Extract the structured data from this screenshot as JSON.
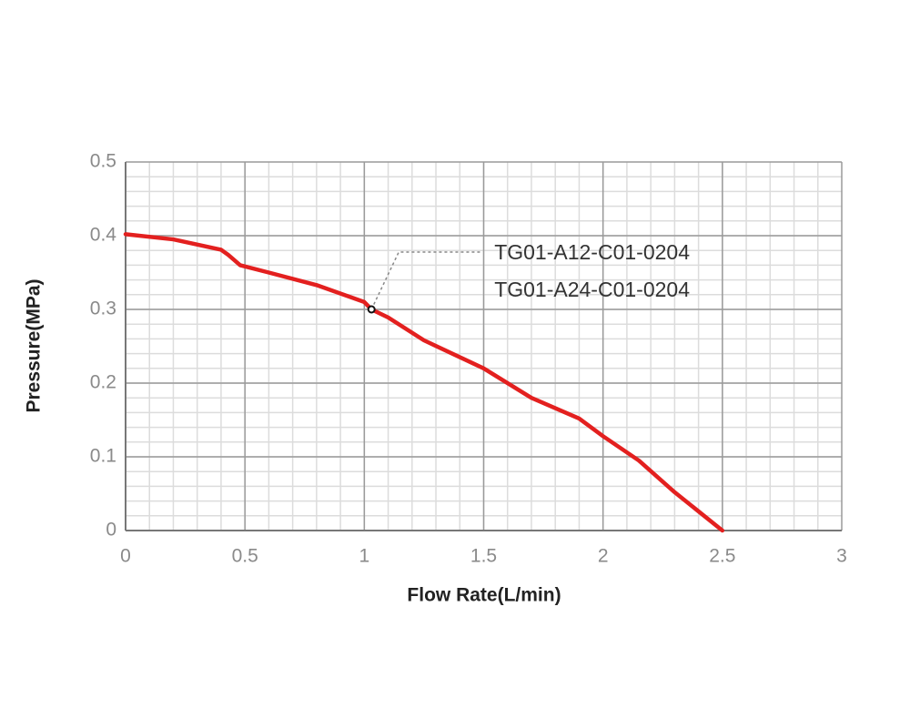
{
  "chart_data": {
    "type": "line",
    "x_label": "Flow Rate(L/min)",
    "y_label": "Pressure(MPa)",
    "x": [
      0,
      0.2,
      0.4,
      0.43,
      0.48,
      0.6,
      0.8,
      1.0,
      1.03,
      1.1,
      1.25,
      1.5,
      1.7,
      1.9,
      2.0,
      2.15,
      2.3,
      2.5
    ],
    "values": [
      0.402,
      0.395,
      0.381,
      0.374,
      0.36,
      0.35,
      0.333,
      0.31,
      0.3,
      0.289,
      0.258,
      0.22,
      0.18,
      0.152,
      0.128,
      0.095,
      0.052,
      0
    ],
    "color": "#e3201f",
    "xlim": [
      0,
      3
    ],
    "xticks": [
      0,
      0.5,
      1,
      1.5,
      2,
      2.5,
      3
    ],
    "ylim": [
      0,
      0.5
    ],
    "yticks": [
      0,
      0.1,
      0.2,
      0.3,
      0.4,
      0.5
    ],
    "grid": true,
    "minor_grid_step": [
      0.1,
      0.02
    ],
    "annotation": {
      "texts": [
        "TG01-A12-C01-0204",
        "TG01-A24-C01-0204"
      ],
      "x": 1.03,
      "y": 0.3
    }
  }
}
